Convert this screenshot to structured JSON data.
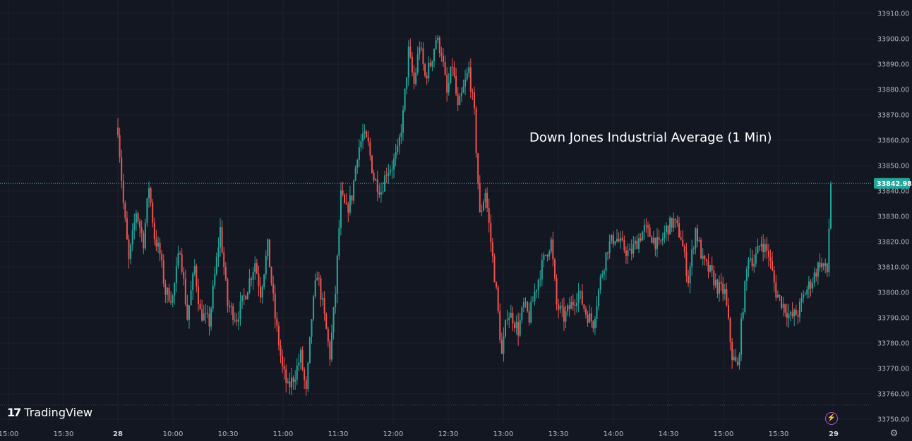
{
  "branding": {
    "logo_mark": "17",
    "logo_text": "TradingView"
  },
  "colors": {
    "background": "#131722",
    "up": "#26a69a",
    "down": "#ef5350",
    "price_line": "#26a69a",
    "grid": "#1e222d",
    "text": "#b2b5be"
  },
  "icons": {
    "bolt": "lightning-icon",
    "settings": "gear-icon"
  },
  "chart_data": {
    "type": "candlestick",
    "title": "Down Jones Industrial Average (1 Min)",
    "y_ticks": [
      "33910.00",
      "33900.00",
      "33890.00",
      "33880.00",
      "33870.00",
      "33860.00",
      "33850.00",
      "33840.00",
      "33830.00",
      "33820.00",
      "33810.00",
      "33800.00",
      "33790.00",
      "33780.00",
      "33770.00",
      "33760.00",
      "33750.00"
    ],
    "x_ticks": [
      {
        "label": "15:00",
        "bold": false
      },
      {
        "label": "15:30",
        "bold": false
      },
      {
        "label": "28",
        "bold": true
      },
      {
        "label": "10:00",
        "bold": false
      },
      {
        "label": "10:30",
        "bold": false
      },
      {
        "label": "11:00",
        "bold": false
      },
      {
        "label": "11:30",
        "bold": false
      },
      {
        "label": "12:00",
        "bold": false
      },
      {
        "label": "12:30",
        "bold": false
      },
      {
        "label": "13:00",
        "bold": false
      },
      {
        "label": "13:30",
        "bold": false
      },
      {
        "label": "14:00",
        "bold": false
      },
      {
        "label": "14:30",
        "bold": false
      },
      {
        "label": "15:00",
        "bold": false
      },
      {
        "label": "15:30",
        "bold": false
      },
      {
        "label": "29",
        "bold": true
      }
    ],
    "ylim": [
      33750,
      33910
    ],
    "last_price": 33842.98,
    "last_price_label": "33842.98",
    "session_start": "09:30",
    "session_end": "16:00",
    "close_path": [
      [
        "09:30",
        33865
      ],
      [
        "09:33",
        33835
      ],
      [
        "09:36",
        33812
      ],
      [
        "09:40",
        33832
      ],
      [
        "09:44",
        33820
      ],
      [
        "09:47",
        33842
      ],
      [
        "09:50",
        33822
      ],
      [
        "09:53",
        33815
      ],
      [
        "09:56",
        33800
      ],
      [
        "10:00",
        33798
      ],
      [
        "10:04",
        33818
      ],
      [
        "10:08",
        33790
      ],
      [
        "10:12",
        33810
      ],
      [
        "10:15",
        33792
      ],
      [
        "10:20",
        33788
      ],
      [
        "10:26",
        33825
      ],
      [
        "10:30",
        33795
      ],
      [
        "10:35",
        33790
      ],
      [
        "10:40",
        33800
      ],
      [
        "10:45",
        33812
      ],
      [
        "10:48",
        33800
      ],
      [
        "10:52",
        33818
      ],
      [
        "10:56",
        33790
      ],
      [
        "11:00",
        33770
      ],
      [
        "11:03",
        33762
      ],
      [
        "11:07",
        33768
      ],
      [
        "11:10",
        33775
      ],
      [
        "11:13",
        33760
      ],
      [
        "11:16",
        33790
      ],
      [
        "11:19",
        33808
      ],
      [
        "11:22",
        33795
      ],
      [
        "11:26",
        33775
      ],
      [
        "11:29",
        33800
      ],
      [
        "11:32",
        33838
      ],
      [
        "11:35",
        33832
      ],
      [
        "11:38",
        33838
      ],
      [
        "11:41",
        33855
      ],
      [
        "11:44",
        33862
      ],
      [
        "11:47",
        33858
      ],
      [
        "11:50",
        33845
      ],
      [
        "11:54",
        33840
      ],
      [
        "11:57",
        33848
      ],
      [
        "12:00",
        33850
      ],
      [
        "12:03",
        33855
      ],
      [
        "12:06",
        33870
      ],
      [
        "12:09",
        33895
      ],
      [
        "12:12",
        33882
      ],
      [
        "12:15",
        33898
      ],
      [
        "12:18",
        33885
      ],
      [
        "12:21",
        33890
      ],
      [
        "12:24",
        33900
      ],
      [
        "12:27",
        33895
      ],
      [
        "12:30",
        33878
      ],
      [
        "12:33",
        33890
      ],
      [
        "12:36",
        33872
      ],
      [
        "12:39",
        33880
      ],
      [
        "12:42",
        33888
      ],
      [
        "12:45",
        33870
      ],
      [
        "12:48",
        33830
      ],
      [
        "12:51",
        33840
      ],
      [
        "12:54",
        33820
      ],
      [
        "12:57",
        33800
      ],
      [
        "13:00",
        33775
      ],
      [
        "13:03",
        33792
      ],
      [
        "13:06",
        33790
      ],
      [
        "13:09",
        33785
      ],
      [
        "13:12",
        33795
      ],
      [
        "13:15",
        33790
      ],
      [
        "13:18",
        33800
      ],
      [
        "13:21",
        33808
      ],
      [
        "13:24",
        33815
      ],
      [
        "13:27",
        33820
      ],
      [
        "13:30",
        33795
      ],
      [
        "13:34",
        33790
      ],
      [
        "13:38",
        33795
      ],
      [
        "13:42",
        33800
      ],
      [
        "13:46",
        33792
      ],
      [
        "13:50",
        33788
      ],
      [
        "13:54",
        33805
      ],
      [
        "13:58",
        33818
      ],
      [
        "14:02",
        33822
      ],
      [
        "14:06",
        33818
      ],
      [
        "14:10",
        33815
      ],
      [
        "14:14",
        33820
      ],
      [
        "14:18",
        33825
      ],
      [
        "14:22",
        33822
      ],
      [
        "14:26",
        33818
      ],
      [
        "14:30",
        33825
      ],
      [
        "14:34",
        33828
      ],
      [
        "14:38",
        33822
      ],
      [
        "14:42",
        33805
      ],
      [
        "14:46",
        33825
      ],
      [
        "14:50",
        33812
      ],
      [
        "14:54",
        33808
      ],
      [
        "14:58",
        33802
      ],
      [
        "15:02",
        33800
      ],
      [
        "15:06",
        33775
      ],
      [
        "15:09",
        33770
      ],
      [
        "15:12",
        33795
      ],
      [
        "15:15",
        33815
      ],
      [
        "15:18",
        33812
      ],
      [
        "15:22",
        33820
      ],
      [
        "15:26",
        33815
      ],
      [
        "15:30",
        33800
      ],
      [
        "15:34",
        33795
      ],
      [
        "15:38",
        33790
      ],
      [
        "15:42",
        33792
      ],
      [
        "15:46",
        33800
      ],
      [
        "15:50",
        33805
      ],
      [
        "15:54",
        33812
      ],
      [
        "15:58",
        33808
      ],
      [
        "16:00",
        33843
      ]
    ]
  }
}
